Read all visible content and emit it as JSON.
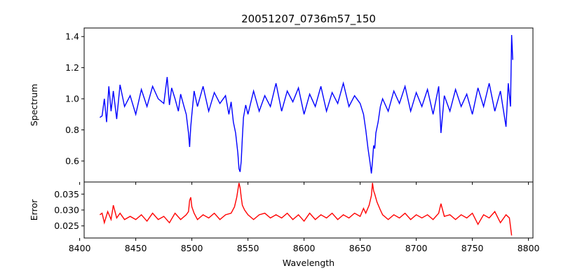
{
  "chart_data": {
    "type": "line",
    "title": "20051207_0736m57_150",
    "xlabel": "Wavelength",
    "xlim": [
      8404,
      8804
    ],
    "xticks": [
      8400,
      8450,
      8500,
      8550,
      8600,
      8650,
      8700,
      8750,
      8800
    ],
    "panels": [
      {
        "name": "spectrum",
        "ylabel": "Spectrum",
        "ylim": [
          0.465,
          1.455
        ],
        "yticks": [
          0.6,
          0.8,
          1.0,
          1.2,
          1.4
        ],
        "ytick_labels": [
          "0.6",
          "0.8",
          "1.0",
          "1.2",
          "1.4"
        ],
        "color": "#0000ff",
        "x": [
          8418,
          8420,
          8422,
          8424,
          8426,
          8428,
          8430,
          8433,
          8436,
          8440,
          8445,
          8450,
          8455,
          8460,
          8465,
          8470,
          8475,
          8478,
          8480,
          8482,
          8485,
          8488,
          8490,
          8493,
          8495,
          8497,
          8498,
          8499,
          8500,
          8502,
          8505,
          8510,
          8515,
          8520,
          8525,
          8530,
          8533,
          8535,
          8537,
          8539,
          8541,
          8542,
          8543,
          8544,
          8545,
          8546,
          8548,
          8550,
          8555,
          8560,
          8565,
          8570,
          8575,
          8580,
          8585,
          8590,
          8595,
          8600,
          8605,
          8610,
          8615,
          8620,
          8625,
          8630,
          8635,
          8640,
          8645,
          8650,
          8653,
          8655,
          8657,
          8659,
          8660,
          8661,
          8662,
          8663,
          8664,
          8666,
          8668,
          8670,
          8675,
          8680,
          8685,
          8690,
          8695,
          8700,
          8705,
          8710,
          8715,
          8720,
          8722,
          8725,
          8730,
          8735,
          8740,
          8745,
          8750,
          8755,
          8760,
          8765,
          8770,
          8775,
          8780,
          8782,
          8784,
          8785,
          8786
        ],
        "y": [
          0.88,
          0.89,
          1.0,
          0.85,
          1.08,
          0.92,
          1.05,
          0.87,
          1.09,
          0.95,
          1.02,
          0.9,
          1.06,
          0.95,
          1.08,
          1.0,
          0.97,
          1.14,
          0.96,
          1.07,
          1.0,
          0.92,
          1.03,
          0.95,
          0.9,
          0.78,
          0.69,
          0.82,
          0.9,
          1.05,
          0.95,
          1.08,
          0.92,
          1.04,
          0.97,
          1.02,
          0.9,
          0.98,
          0.85,
          0.78,
          0.65,
          0.55,
          0.53,
          0.6,
          0.75,
          0.88,
          0.96,
          0.9,
          1.05,
          0.92,
          1.02,
          0.95,
          1.1,
          0.92,
          1.05,
          0.98,
          1.07,
          0.9,
          1.03,
          0.95,
          1.08,
          0.92,
          1.04,
          0.97,
          1.1,
          0.95,
          1.02,
          0.97,
          0.9,
          0.8,
          0.68,
          0.58,
          0.52,
          0.6,
          0.7,
          0.68,
          0.78,
          0.85,
          0.95,
          1.0,
          0.92,
          1.05,
          0.97,
          1.08,
          0.92,
          1.04,
          0.95,
          1.06,
          0.9,
          1.08,
          0.78,
          1.02,
          0.92,
          1.06,
          0.95,
          1.03,
          0.9,
          1.07,
          0.95,
          1.1,
          0.92,
          1.05,
          0.82,
          1.1,
          0.95,
          1.41,
          1.25
        ]
      },
      {
        "name": "error",
        "ylabel": "Error",
        "ylim": [
          0.0212,
          0.0388
        ],
        "yticks": [
          0.025,
          0.03,
          0.035
        ],
        "ytick_labels": [
          "0.025",
          "0.030",
          "0.035"
        ],
        "color": "#ff0000",
        "x": [
          8418,
          8420,
          8422,
          8425,
          8428,
          8430,
          8433,
          8436,
          8440,
          8445,
          8450,
          8455,
          8460,
          8465,
          8470,
          8475,
          8480,
          8485,
          8490,
          8495,
          8497,
          8498,
          8499,
          8500,
          8502,
          8505,
          8510,
          8515,
          8520,
          8525,
          8530,
          8535,
          8538,
          8540,
          8542,
          8543,
          8544,
          8545,
          8547,
          8550,
          8555,
          8560,
          8565,
          8570,
          8575,
          8580,
          8585,
          8590,
          8595,
          8600,
          8605,
          8610,
          8615,
          8620,
          8625,
          8630,
          8635,
          8640,
          8645,
          8650,
          8653,
          8655,
          8658,
          8660,
          8661,
          8662,
          8663,
          8665,
          8668,
          8670,
          8675,
          8680,
          8685,
          8690,
          8695,
          8700,
          8705,
          8710,
          8715,
          8720,
          8722,
          8725,
          8730,
          8735,
          8740,
          8745,
          8750,
          8755,
          8760,
          8765,
          8770,
          8775,
          8780,
          8783,
          8785
        ],
        "y": [
          0.0285,
          0.029,
          0.026,
          0.0295,
          0.027,
          0.0315,
          0.0275,
          0.029,
          0.027,
          0.028,
          0.027,
          0.0285,
          0.0265,
          0.029,
          0.027,
          0.028,
          0.026,
          0.029,
          0.027,
          0.0285,
          0.0295,
          0.033,
          0.034,
          0.031,
          0.029,
          0.027,
          0.0285,
          0.0275,
          0.029,
          0.027,
          0.0285,
          0.029,
          0.031,
          0.034,
          0.0385,
          0.037,
          0.034,
          0.0315,
          0.03,
          0.0285,
          0.027,
          0.0285,
          0.029,
          0.0275,
          0.0285,
          0.0275,
          0.029,
          0.027,
          0.0285,
          0.0265,
          0.029,
          0.027,
          0.0285,
          0.0275,
          0.029,
          0.027,
          0.0285,
          0.0275,
          0.029,
          0.028,
          0.0305,
          0.029,
          0.0315,
          0.0345,
          0.0385,
          0.036,
          0.035,
          0.0325,
          0.03,
          0.0285,
          0.027,
          0.0285,
          0.0275,
          0.029,
          0.027,
          0.0285,
          0.0275,
          0.0285,
          0.027,
          0.029,
          0.032,
          0.028,
          0.0285,
          0.027,
          0.0285,
          0.0275,
          0.029,
          0.0255,
          0.0285,
          0.0275,
          0.0295,
          0.026,
          0.0285,
          0.0275,
          0.022
        ]
      }
    ]
  }
}
